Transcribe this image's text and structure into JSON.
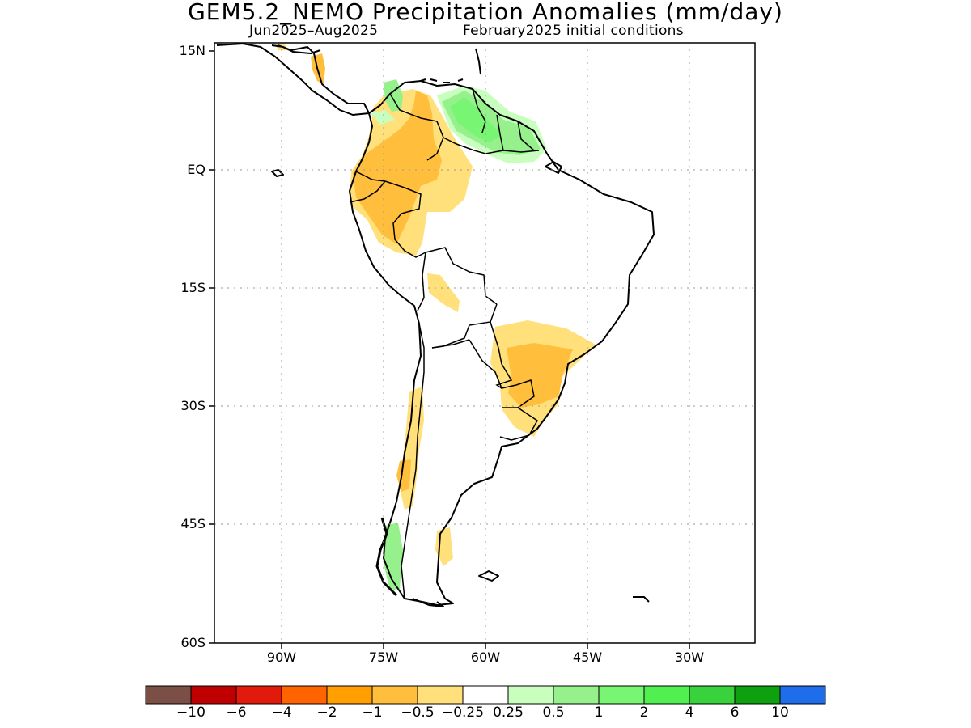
{
  "title": "GEM5.2_NEMO Precipitation Anomalies (mm/day)",
  "subtitle_period": "Jun2025–Aug2025",
  "subtitle_init": "February2025 initial conditions",
  "lat_labels": [
    "15N",
    "EQ",
    "15S",
    "30S",
    "45S",
    "60S"
  ],
  "lon_labels": [
    "90W",
    "75W",
    "60W",
    "45W",
    "30W"
  ],
  "colorbar": {
    "colors": [
      "#7b4f45",
      "#c00000",
      "#e21a0c",
      "#ff6400",
      "#ffa000",
      "#ffbf3c",
      "#ffe07a",
      "#ffffff",
      "#c8ffbe",
      "#96f08c",
      "#78f573",
      "#50f050",
      "#37d23c",
      "#0fa00f",
      "#1e6eeb"
    ],
    "labels": [
      "−10",
      "−6",
      "−4",
      "−2",
      "−1",
      "−0.5",
      "−0.25",
      "0.25",
      "0.5",
      "1",
      "2",
      "4",
      "6",
      "10"
    ]
  },
  "map_colors": {
    "land_outline": "#000000",
    "grid": "#999999",
    "frame": "#000000"
  }
}
